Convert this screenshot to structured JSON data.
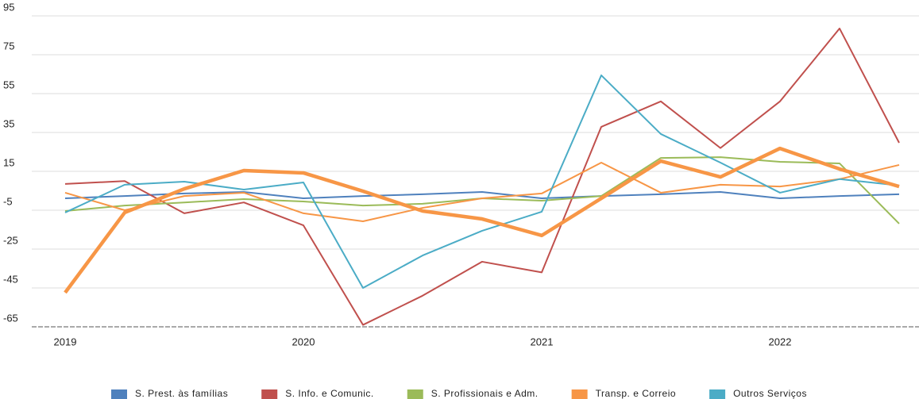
{
  "chart_data": {
    "type": "line",
    "categories": [
      "2019",
      null,
      null,
      null,
      "2020",
      null,
      null,
      null,
      "2021",
      null,
      null,
      null,
      "2022",
      null,
      null
    ],
    "series": [
      {
        "name": "S. Prest. às famílias",
        "color": "#4f81bd",
        "width": 2,
        "values": [
          1.1,
          2.3,
          3.6,
          4.4,
          1.1,
          2.3,
          3.2,
          4.4,
          1.1,
          2.3,
          3.2,
          4.4,
          1.1,
          2.3,
          3.2
        ]
      },
      {
        "name": "S. Info. e Comunic.",
        "color": "#c0504d",
        "width": 2,
        "values": [
          8.5,
          10,
          -6.6,
          -1,
          -12.8,
          -64,
          -49,
          -31.5,
          -37,
          37.9,
          51,
          27,
          51,
          88.5,
          29.7
        ]
      },
      {
        "name": "S. Profissionais e Adm.",
        "color": "#9bbb59",
        "width": 2,
        "values": [
          -5.4,
          -2.6,
          -1,
          0.7,
          -0.5,
          -2.6,
          -1.7,
          1.1,
          -0.1,
          2.3,
          21.9,
          22.3,
          19.9,
          19.1,
          -11.9
        ]
      },
      {
        "name": "Transp. e Correio",
        "color": "#f79646",
        "width": 2,
        "values": [
          4,
          -5,
          2.3,
          4,
          -6.6,
          -10.7,
          -3.8,
          1.1,
          3.6,
          19.5,
          4,
          8.1,
          7.2,
          11,
          18.3
        ]
      },
      {
        "name": "Outros Serviços",
        "color": "#4bacc6",
        "width": 2,
        "values": [
          -6.2,
          8.1,
          9.7,
          5.6,
          9.3,
          -45,
          -28.3,
          -15.6,
          -5.8,
          64.4,
          34.2,
          19.5,
          4,
          11,
          7.7
        ]
      },
      {
        "color": "#f79646",
        "width": 4.5,
        "values": [
          -47.4,
          -6.2,
          6,
          15.4,
          14.2,
          4.8,
          -5.4,
          -9.5,
          -18,
          1.1,
          20.3,
          12.1,
          26.8,
          16.2,
          7.2
        ]
      }
    ],
    "ylim": [
      -65,
      95
    ],
    "yticks": [
      -65,
      -45,
      -25,
      -5,
      15,
      35,
      55,
      75,
      95
    ],
    "grid": true,
    "legend": "bottom"
  }
}
